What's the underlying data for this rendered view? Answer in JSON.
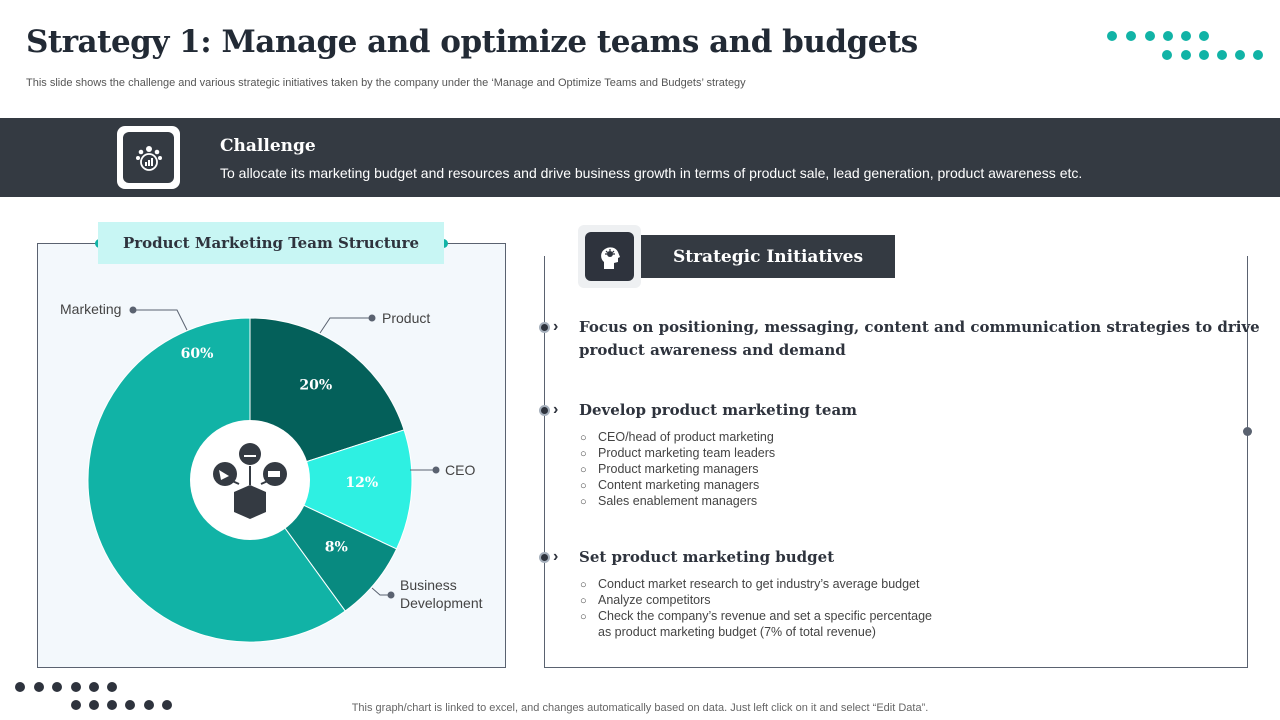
{
  "header": {
    "title": "Strategy 1: Manage and optimize teams and budgets",
    "subtitle": "This slide shows the challenge and various strategic initiatives taken by the company under the ‘Manage and Optimize Teams and Budgets’ strategy"
  },
  "challenge": {
    "title": "Challenge",
    "text": "To allocate its marketing budget and resources and drive business growth in terms of product sale, lead generation, product awareness etc."
  },
  "colors": {
    "dark": "#343a42",
    "teal": "#11b3a6",
    "light_teal": "#c8f6f4",
    "ceo_teal": "#2ef0e2",
    "dark_green": "#04605a",
    "mid_teal": "#088a80"
  },
  "chart_data": {
    "type": "pie",
    "title": "Product Marketing Team Structure",
    "categories": [
      "Product",
      "CEO",
      "Business Development",
      "Marketing"
    ],
    "values": [
      20,
      12,
      8,
      60
    ],
    "data_labels": [
      "20%",
      "12%",
      "8%",
      "60%"
    ],
    "colors": [
      "#04605a",
      "#2ef0e2",
      "#088a80",
      "#11b3a6"
    ],
    "donut": true
  },
  "callouts": {
    "marketing": "Marketing",
    "product": "Product",
    "ceo": "CEO",
    "bd_line1": "Business",
    "bd_line2": "Development"
  },
  "initiatives": {
    "title": "Strategic Initiatives",
    "items": [
      {
        "heading_line1": "Focus on positioning, messaging, content and communication strategies to drive",
        "heading_line2": "product awareness and demand"
      },
      {
        "heading_line1": "Develop product marketing team",
        "sub": [
          "CEO/head of product marketing",
          "Product marketing team leaders",
          "Product marketing managers",
          "Content marketing managers",
          "Sales enablement  managers"
        ]
      },
      {
        "heading_line1": "Set product marketing budget",
        "sub": [
          "Conduct market research to get industry’s average  budget",
          "Analyze competitors",
          "Check the company’s revenue  and set a specific percentage"
        ],
        "sub_cont": "as product marketing budget (7% of total revenue)"
      }
    ]
  },
  "footer": "This graph/chart is linked to excel,  and changes automatically based on data. Just left click on it and select “Edit Data”."
}
